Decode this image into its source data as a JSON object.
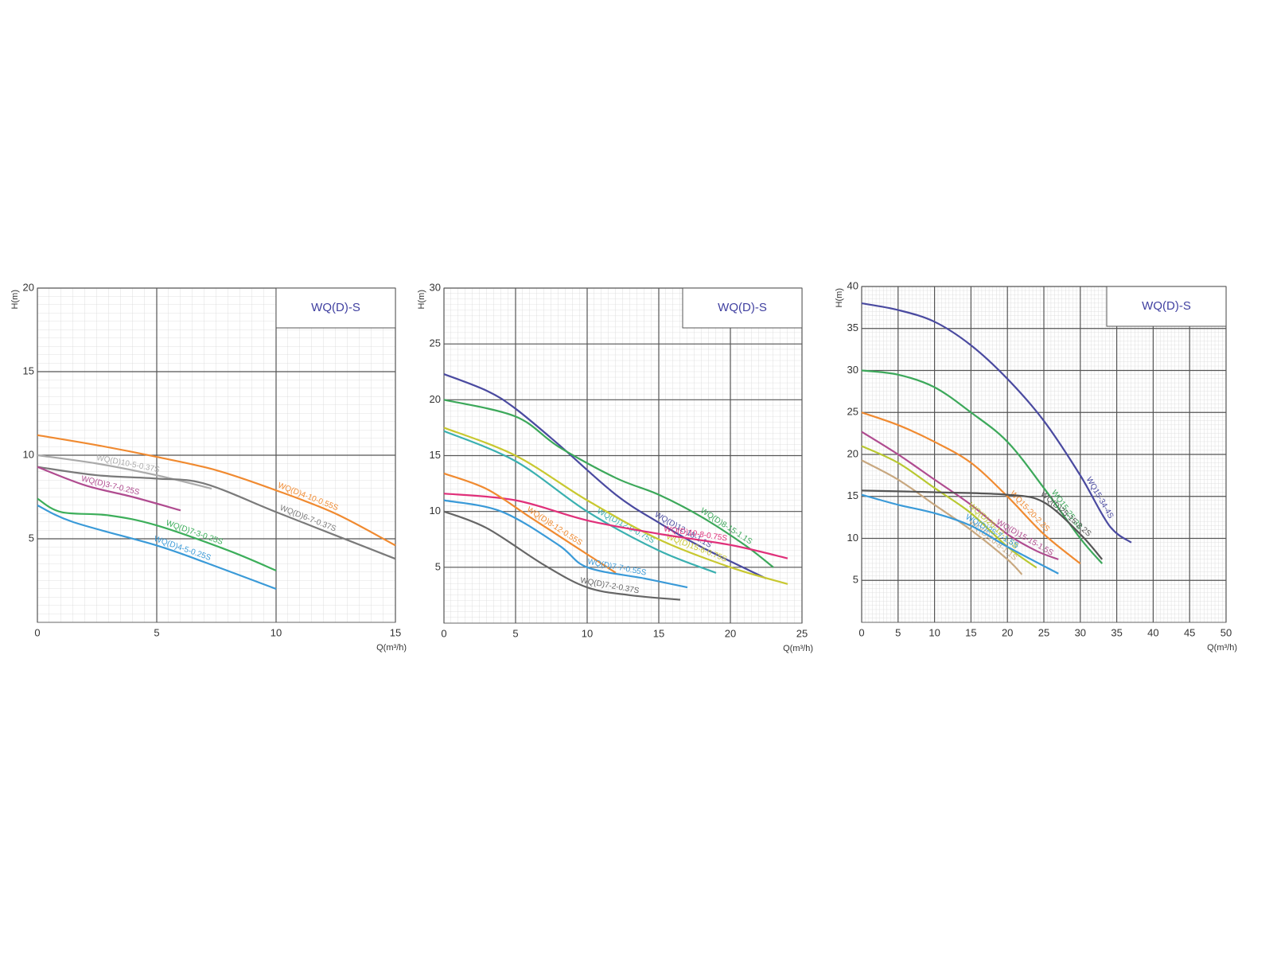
{
  "chart_data": [
    {
      "type": "line",
      "title": "WQ(D)-S",
      "ylabel": "H(m)",
      "xlabel": "Q(m³/h)",
      "xlim": [
        0,
        15
      ],
      "ylim": [
        0,
        20
      ],
      "xticks": [
        0,
        5,
        10,
        15
      ],
      "yticks": [
        5,
        10,
        15,
        20
      ],
      "grid": true,
      "series": [
        {
          "name": "WQ(D)4-10-0.55S",
          "color": "#f08a30",
          "x": [
            0,
            2.5,
            5,
            7.5,
            10,
            12.5,
            15
          ],
          "values": [
            11.2,
            10.6,
            9.9,
            9.1,
            7.9,
            6.5,
            4.6
          ]
        },
        {
          "name": "WQ(D)10-5-0.37S",
          "color": "#aaaaaa",
          "x": [
            0,
            2.5,
            5,
            7.3
          ],
          "values": [
            10.0,
            9.5,
            8.8,
            8.0
          ]
        },
        {
          "name": "WQ(D)6-7-0.37S",
          "color": "#7a7a7a",
          "x": [
            0,
            2.5,
            5,
            7,
            10,
            12.5,
            15
          ],
          "values": [
            9.3,
            8.8,
            8.6,
            8.3,
            6.6,
            5.2,
            3.8
          ]
        },
        {
          "name": "WQ(D)3-7-0.25S",
          "color": "#b04c90",
          "x": [
            0,
            2,
            4,
            6
          ],
          "values": [
            9.3,
            8.2,
            7.5,
            6.7
          ]
        },
        {
          "name": "WQ(D)7-3-0.25S",
          "color": "#3cae5a",
          "x": [
            0,
            1,
            3,
            5,
            8,
            10
          ],
          "values": [
            7.4,
            6.6,
            6.4,
            5.8,
            4.3,
            3.1
          ]
        },
        {
          "name": "WQ(D)4-5-0.25S",
          "color": "#3a9ad8",
          "x": [
            0,
            1.5,
            5,
            7,
            10
          ],
          "values": [
            7.0,
            6.0,
            4.6,
            3.6,
            2.0
          ]
        }
      ]
    },
    {
      "type": "line",
      "title": "WQ(D)-S",
      "ylabel": "H(m)",
      "xlabel": "Q(m³/h)",
      "xlim": [
        0,
        25
      ],
      "ylim": [
        0,
        30
      ],
      "xticks": [
        0,
        5,
        10,
        15,
        20,
        25
      ],
      "yticks": [
        5,
        10,
        15,
        20,
        25,
        30
      ],
      "grid": true,
      "series": [
        {
          "name": "WQ(D)12-18-1.1S",
          "color": "#4a4aa0",
          "x": [
            0,
            3,
            5,
            8,
            12,
            15,
            18,
            22.5
          ],
          "values": [
            22.3,
            20.8,
            19.2,
            16.0,
            11.5,
            9.0,
            6.8,
            4.0
          ]
        },
        {
          "name": "WQ(D)8-15-1.1S",
          "color": "#3ca85a",
          "x": [
            0,
            5,
            8,
            12,
            15,
            18,
            21,
            23
          ],
          "values": [
            20.0,
            18.5,
            15.8,
            13.0,
            11.5,
            9.5,
            7.0,
            5.0
          ]
        },
        {
          "name": "WQ(D)12-9-0.75S",
          "color": "#3ab0b0",
          "x": [
            0,
            5,
            10,
            15,
            19
          ],
          "values": [
            17.2,
            14.5,
            10.0,
            6.5,
            4.5
          ]
        },
        {
          "name": "WQ(D)15-6-0.75S",
          "color": "#c8c830",
          "x": [
            0,
            5,
            10,
            15,
            20,
            24
          ],
          "values": [
            17.5,
            15.0,
            11.0,
            7.5,
            5.0,
            3.5
          ]
        },
        {
          "name": "WQ(D)10-8-0.75S",
          "color": "#e0307a",
          "x": [
            0,
            5,
            10,
            15,
            20,
            24
          ],
          "values": [
            11.6,
            11.0,
            9.2,
            8.0,
            7.0,
            5.8
          ]
        },
        {
          "name": "WQ(D)8-12-0.55S",
          "color": "#f08a30",
          "x": [
            0,
            3,
            6,
            9,
            12
          ],
          "values": [
            13.4,
            12.0,
            9.5,
            7.0,
            4.5
          ]
        },
        {
          "name": "WQ(D)7-7-0.55S",
          "color": "#3a9ad8",
          "x": [
            0,
            4,
            8,
            10,
            14,
            17
          ],
          "values": [
            11.0,
            10.0,
            7.0,
            5.0,
            4.0,
            3.2
          ]
        },
        {
          "name": "WQ(D)7-2-0.37S",
          "color": "#666666",
          "x": [
            0,
            3,
            7,
            10,
            13,
            16.5
          ],
          "values": [
            10.0,
            8.5,
            5.2,
            3.2,
            2.5,
            2.1
          ]
        }
      ]
    },
    {
      "type": "line",
      "title": "WQ(D)-S",
      "ylabel": "H(m)",
      "xlabel": "Q(m³/h)",
      "xlim": [
        0,
        50
      ],
      "ylim": [
        0,
        40
      ],
      "xticks": [
        0,
        5,
        10,
        15,
        20,
        25,
        30,
        35,
        40,
        45,
        50
      ],
      "yticks": [
        5,
        10,
        15,
        20,
        25,
        30,
        35,
        40
      ],
      "grid": true,
      "series": [
        {
          "name": "WQ15-34-4S",
          "color": "#4a4aa0",
          "x": [
            0,
            5,
            10,
            15,
            20,
            25,
            30,
            34,
            37
          ],
          "values": [
            38.0,
            37.2,
            35.8,
            33.0,
            29.0,
            24.0,
            17.5,
            11.5,
            9.5
          ]
        },
        {
          "name": "WQ15-25-3S",
          "color": "#3ca85a",
          "x": [
            0,
            5,
            10,
            15,
            20,
            25,
            30,
            33
          ],
          "values": [
            30.0,
            29.5,
            28.0,
            25.0,
            21.5,
            16.0,
            10.0,
            7.0
          ]
        },
        {
          "name": "WQ15-20-2.2S",
          "color": "#f08a30",
          "x": [
            0,
            5,
            10,
            15,
            20,
            25,
            30
          ],
          "values": [
            25.0,
            23.5,
            21.5,
            19.0,
            15.0,
            10.5,
            7.0
          ]
        },
        {
          "name": "WQ(D)15-15-1.5S",
          "color": "#b04c90",
          "x": [
            0,
            5,
            10,
            15,
            20,
            24,
            27
          ],
          "values": [
            22.7,
            20.0,
            17.0,
            14.0,
            10.5,
            8.5,
            7.5
          ]
        },
        {
          "name": "WQ(D)20-12-1.5S",
          "color": "#b8c830",
          "x": [
            0,
            5,
            10,
            15,
            20,
            24
          ],
          "values": [
            21.0,
            19.0,
            16.0,
            13.0,
            9.0,
            6.5
          ]
        },
        {
          "name": "WQ(D)20-8-1.1S",
          "color": "#c8a880",
          "x": [
            0,
            5,
            10,
            15,
            20,
            22
          ],
          "values": [
            19.3,
            17.0,
            14.0,
            11.0,
            7.5,
            5.7
          ]
        },
        {
          "name": "WQ(D)25-7-1.5S",
          "color": "#3a9ad8",
          "x": [
            0,
            5,
            10,
            15,
            20,
            27
          ],
          "values": [
            15.2,
            14.0,
            13.0,
            11.5,
            9.0,
            5.8
          ]
        },
        {
          "name": "WQ(D)25-15-2.2S",
          "color": "#555555",
          "x": [
            0,
            10,
            20,
            25,
            30,
            33
          ],
          "values": [
            15.7,
            15.5,
            15.2,
            14.3,
            10.5,
            7.5
          ]
        }
      ]
    }
  ]
}
